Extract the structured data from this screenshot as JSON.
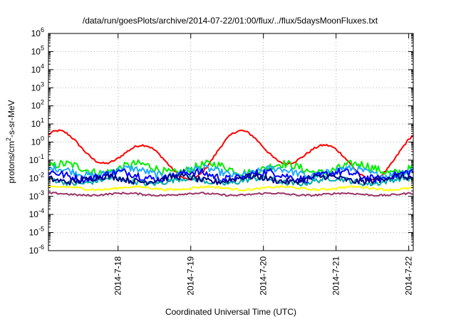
{
  "chart_data": {
    "type": "line",
    "title": "/data/run/goesPlots/archive/2014-07-22/01:00/flux/../flux/5daysMoonFluxes.txt",
    "xlabel": "Coordinated Universal Time (UTC)",
    "ylabel": {
      "pre": "protons/cm",
      "sup": "2",
      "post": "-s-sr-MeV"
    },
    "yscale": "log",
    "ylim": [
      1e-06,
      1000000.0
    ],
    "y_ticks": [
      {
        "base": "10",
        "exp": "-6"
      },
      {
        "base": "10",
        "exp": "-5"
      },
      {
        "base": "10",
        "exp": "-4"
      },
      {
        "base": "10",
        "exp": "-3"
      },
      {
        "base": "10",
        "exp": "-2"
      },
      {
        "base": "10",
        "exp": "-1"
      },
      {
        "base": "10",
        "exp": "0"
      },
      {
        "base": "10",
        "exp": "1"
      },
      {
        "base": "10",
        "exp": "2"
      },
      {
        "base": "10",
        "exp": "3"
      },
      {
        "base": "10",
        "exp": "4"
      },
      {
        "base": "10",
        "exp": "5"
      },
      {
        "base": "10",
        "exp": "6"
      }
    ],
    "xlim": [
      "2014-07-17 01:00",
      "2014-07-22 01:30"
    ],
    "x_ticks": [
      "2014-7-18",
      "2014-7-19",
      "2014-7-20",
      "2014-7-21",
      "2014-7-22"
    ],
    "grid": true,
    "series": [
      {
        "color": "#ff0000",
        "level": 0.2,
        "noise": 0.12,
        "waves": [
          [
            0.6,
            2,
            0.5
          ],
          [
            0.9,
            4,
            1.1
          ]
        ],
        "values": [
          0.2,
          0.5,
          0.12,
          0.5,
          0.15,
          0.8,
          0.15,
          2.0,
          0.2,
          1.5,
          0.1
        ]
      },
      {
        "color": "#00ee00",
        "level": 0.035,
        "noise": 0.45,
        "waves": [
          [
            0.25,
            5,
            0.2
          ]
        ],
        "values": [
          0.035,
          0.04,
          0.03
        ]
      },
      {
        "color": "#22aaff",
        "level": 0.022,
        "noise": 0.4,
        "waves": [
          [
            0.2,
            5,
            0.9
          ]
        ],
        "values": [
          0.022,
          0.025,
          0.02
        ]
      },
      {
        "color": "#0000ff",
        "level": 0.014,
        "noise": 0.45,
        "waves": [
          [
            0.2,
            5,
            1.6
          ]
        ],
        "values": [
          0.014,
          0.016,
          0.012
        ]
      },
      {
        "color": "#00aaaa",
        "level": 0.007,
        "noise": 0.3,
        "waves": [
          [
            0.15,
            5,
            2.2
          ]
        ],
        "values": [
          0.007,
          0.008,
          0.006
        ]
      },
      {
        "color": "#000088",
        "level": 0.009,
        "noise": 0.35,
        "waves": [
          [
            0.15,
            5,
            2.9
          ]
        ],
        "values": [
          0.009,
          0.01,
          0.008
        ]
      },
      {
        "color": "#ffff00",
        "level": 0.0028,
        "noise": 0.12,
        "waves": [
          [
            0.08,
            5,
            0.4
          ]
        ],
        "values": [
          0.0028,
          0.003,
          0.0026
        ]
      },
      {
        "color": "#993366",
        "level": 0.0013,
        "noise": 0.1,
        "waves": [
          [
            0.06,
            5,
            1.3
          ]
        ],
        "values": [
          0.0013,
          0.0014,
          0.0012
        ]
      }
    ]
  }
}
